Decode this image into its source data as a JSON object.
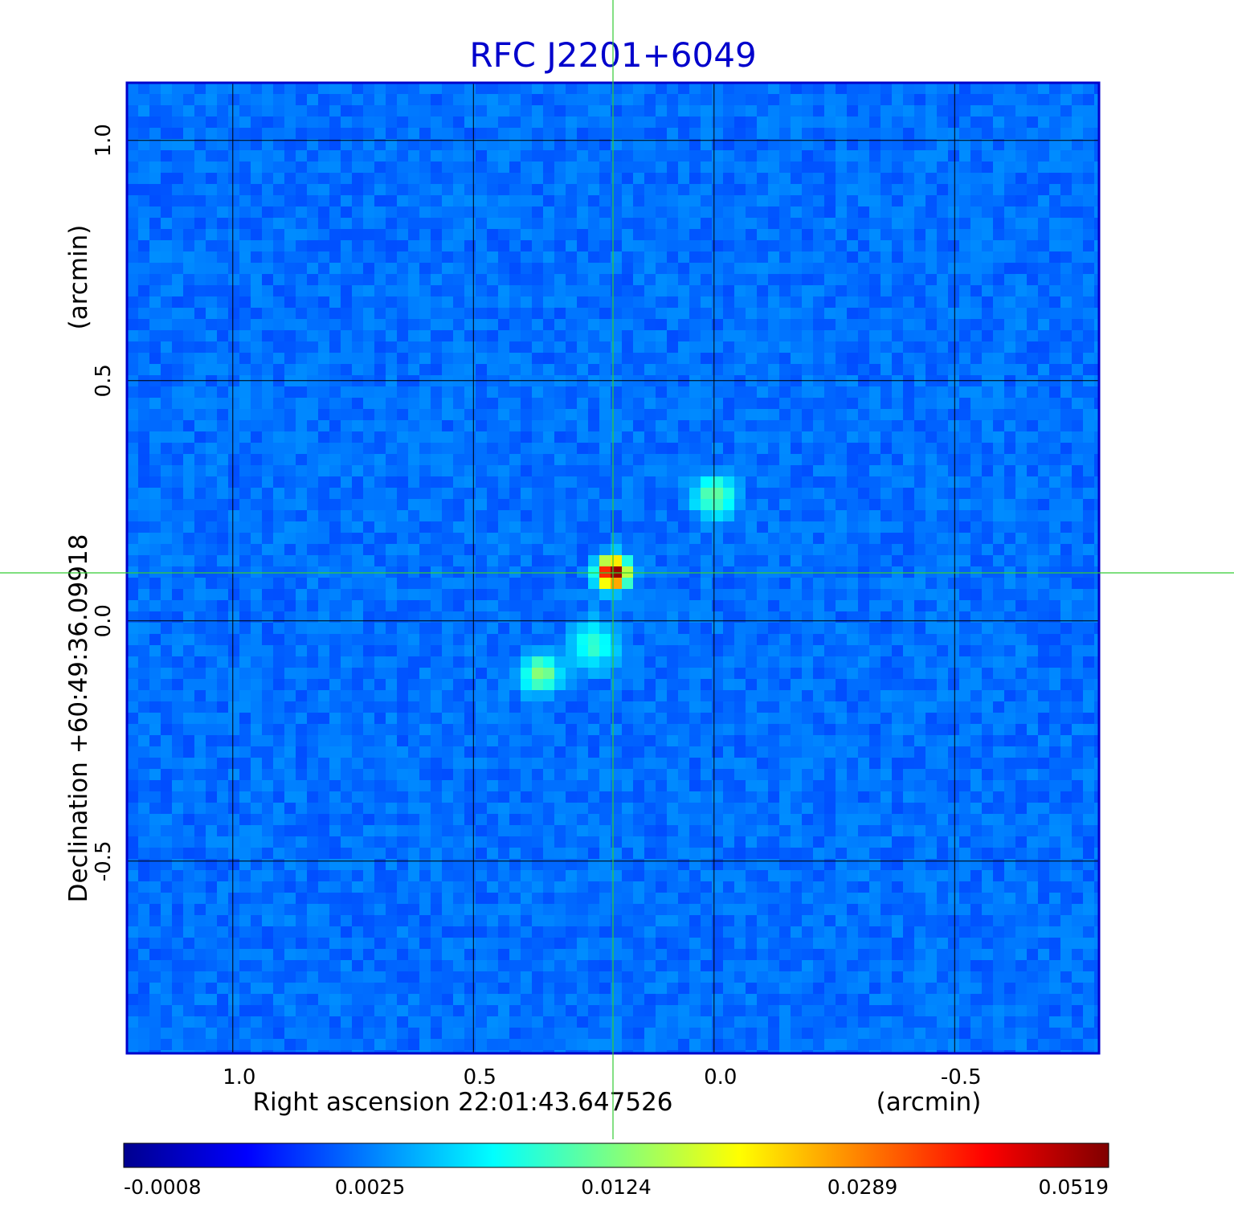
{
  "chart_data": {
    "type": "heatmap",
    "title": "RFC J2201+6049",
    "xlabel": "Right ascension  22:01:43.647526",
    "xunit": "(arcmin)",
    "ylabel": "Declination  +60:49:36.09918",
    "yunit": "(arcmin)",
    "xlim": [
      1.22,
      -0.8
    ],
    "ylim": [
      -0.9,
      1.12
    ],
    "x_ticks": [
      {
        "value": 1.0,
        "label": "1.0"
      },
      {
        "value": 0.5,
        "label": "0.5"
      },
      {
        "value": 0.0,
        "label": "0.0"
      },
      {
        "value": -0.5,
        "label": "-0.5"
      }
    ],
    "y_ticks": [
      {
        "value": 1.0,
        "label": "1.0"
      },
      {
        "value": 0.5,
        "label": "0.5"
      },
      {
        "value": 0.0,
        "label": "0.0"
      },
      {
        "value": -0.5,
        "label": "-0.5"
      }
    ],
    "grid": true,
    "crosshair": {
      "x": 0.21,
      "y": 0.1,
      "color": "#33cc33"
    },
    "colormap": "jet",
    "colorbar": {
      "ticks": [
        "-0.0008",
        "0.0025",
        "0.0124",
        "0.0289",
        "0.0519"
      ],
      "range": [
        -0.0008,
        0.0519
      ]
    },
    "components": [
      {
        "x": 0.21,
        "y": 0.1,
        "peak": 0.0519,
        "sigma": 0.018
      },
      {
        "x": 0.0,
        "y": 0.26,
        "peak": 0.0085,
        "sigma": 0.026
      },
      {
        "x": 0.36,
        "y": -0.11,
        "peak": 0.01,
        "sigma": 0.024
      },
      {
        "x": 0.25,
        "y": -0.05,
        "peak": 0.006,
        "sigma": 0.03
      }
    ],
    "background_level": 0.0004
  },
  "colors": {
    "frame": "#0000cc",
    "grid": "#000000",
    "crosshair": "#33cc33",
    "title": "#0000cc"
  }
}
